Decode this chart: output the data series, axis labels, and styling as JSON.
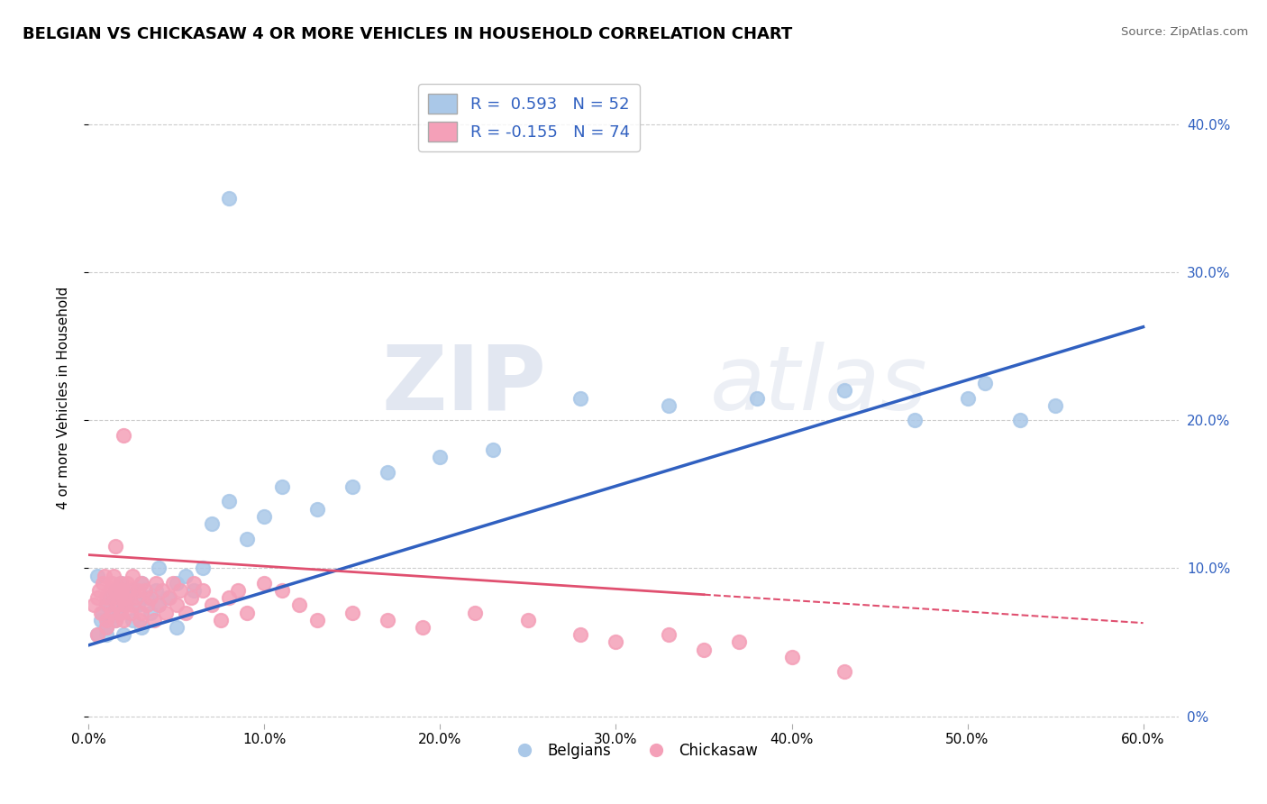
{
  "title": "BELGIAN VS CHICKASAW 4 OR MORE VEHICLES IN HOUSEHOLD CORRELATION CHART",
  "source_text": "Source: ZipAtlas.com",
  "ylabel": "4 or more Vehicles in Household",
  "xlim": [
    0.0,
    0.62
  ],
  "ylim": [
    -0.005,
    0.435
  ],
  "xtick_labels": [
    "0.0%",
    "10.0%",
    "20.0%",
    "30.0%",
    "40.0%",
    "50.0%",
    "60.0%"
  ],
  "xtick_vals": [
    0.0,
    0.1,
    0.2,
    0.3,
    0.4,
    0.5,
    0.6
  ],
  "ytick_labels_right": [
    "0%",
    "10.0%",
    "20.0%",
    "30.0%",
    "40.0%"
  ],
  "ytick_vals": [
    0.0,
    0.1,
    0.2,
    0.3,
    0.4
  ],
  "belgian_color": "#aac8e8",
  "chickasaw_color": "#f4a0b8",
  "blue_line_color": "#3060c0",
  "pink_line_color": "#e05070",
  "R_belgian": 0.593,
  "N_belgian": 52,
  "R_chickasaw": -0.155,
  "N_chickasaw": 74,
  "watermark_zip": "ZIP",
  "watermark_atlas": "atlas",
  "background_color": "#ffffff",
  "grid_color": "#cccccc",
  "title_fontsize": 13,
  "blue_line_y0": 0.048,
  "blue_line_y1": 0.263,
  "pink_line_y0": 0.109,
  "pink_line_y1": 0.063,
  "belgian_x": [
    0.005,
    0.007,
    0.008,
    0.01,
    0.01,
    0.012,
    0.013,
    0.015,
    0.015,
    0.017,
    0.018,
    0.02,
    0.02,
    0.022,
    0.025,
    0.025,
    0.028,
    0.03,
    0.03,
    0.033,
    0.035,
    0.038,
    0.04,
    0.04,
    0.045,
    0.05,
    0.055,
    0.06,
    0.065,
    0.07,
    0.08,
    0.09,
    0.1,
    0.11,
    0.13,
    0.15,
    0.17,
    0.2,
    0.23,
    0.28,
    0.33,
    0.38,
    0.43,
    0.47,
    0.5,
    0.51,
    0.53,
    0.55,
    0.005,
    0.01,
    0.05,
    0.08
  ],
  "belgian_y": [
    0.055,
    0.065,
    0.07,
    0.06,
    0.075,
    0.08,
    0.07,
    0.065,
    0.085,
    0.07,
    0.09,
    0.055,
    0.075,
    0.08,
    0.065,
    0.085,
    0.075,
    0.06,
    0.09,
    0.08,
    0.07,
    0.085,
    0.075,
    0.1,
    0.08,
    0.09,
    0.095,
    0.085,
    0.1,
    0.13,
    0.145,
    0.12,
    0.135,
    0.155,
    0.14,
    0.155,
    0.165,
    0.175,
    0.18,
    0.215,
    0.21,
    0.215,
    0.22,
    0.2,
    0.215,
    0.225,
    0.2,
    0.21,
    0.095,
    0.055,
    0.06,
    0.35
  ],
  "chickasaw_x": [
    0.003,
    0.005,
    0.006,
    0.007,
    0.008,
    0.009,
    0.01,
    0.01,
    0.011,
    0.012,
    0.013,
    0.013,
    0.014,
    0.015,
    0.015,
    0.016,
    0.017,
    0.018,
    0.018,
    0.019,
    0.02,
    0.02,
    0.021,
    0.022,
    0.023,
    0.024,
    0.025,
    0.025,
    0.027,
    0.028,
    0.029,
    0.03,
    0.03,
    0.032,
    0.033,
    0.035,
    0.037,
    0.038,
    0.04,
    0.042,
    0.044,
    0.046,
    0.048,
    0.05,
    0.052,
    0.055,
    0.058,
    0.06,
    0.065,
    0.07,
    0.075,
    0.08,
    0.085,
    0.09,
    0.1,
    0.11,
    0.12,
    0.13,
    0.15,
    0.17,
    0.19,
    0.22,
    0.25,
    0.28,
    0.3,
    0.33,
    0.35,
    0.37,
    0.4,
    0.43,
    0.005,
    0.01,
    0.015,
    0.02
  ],
  "chickasaw_y": [
    0.075,
    0.08,
    0.085,
    0.07,
    0.09,
    0.095,
    0.065,
    0.08,
    0.075,
    0.085,
    0.09,
    0.07,
    0.095,
    0.065,
    0.085,
    0.075,
    0.08,
    0.07,
    0.09,
    0.085,
    0.065,
    0.08,
    0.075,
    0.09,
    0.085,
    0.07,
    0.075,
    0.095,
    0.08,
    0.085,
    0.065,
    0.07,
    0.09,
    0.085,
    0.075,
    0.08,
    0.065,
    0.09,
    0.075,
    0.085,
    0.07,
    0.08,
    0.09,
    0.075,
    0.085,
    0.07,
    0.08,
    0.09,
    0.085,
    0.075,
    0.065,
    0.08,
    0.085,
    0.07,
    0.09,
    0.085,
    0.075,
    0.065,
    0.07,
    0.065,
    0.06,
    0.07,
    0.065,
    0.055,
    0.05,
    0.055,
    0.045,
    0.05,
    0.04,
    0.03,
    0.055,
    0.06,
    0.115,
    0.19
  ]
}
